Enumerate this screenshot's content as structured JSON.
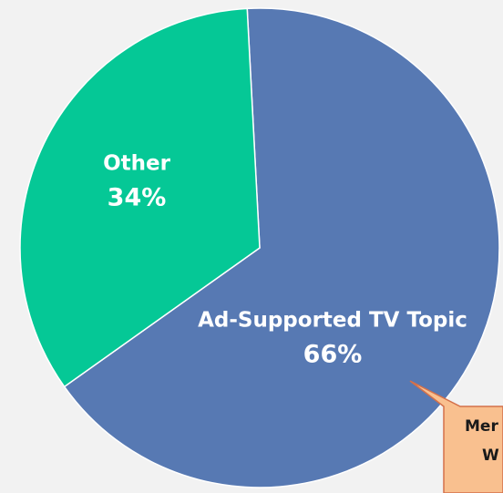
{
  "chart_data": {
    "type": "pie",
    "categories": [
      "Ad-Supported TV Topic",
      "Other"
    ],
    "values": [
      66,
      34
    ],
    "value_labels": [
      "66%",
      "34%"
    ],
    "colors": [
      "#5779b3",
      "#05c896"
    ],
    "annotation": [
      "Mer",
      "W"
    ]
  }
}
